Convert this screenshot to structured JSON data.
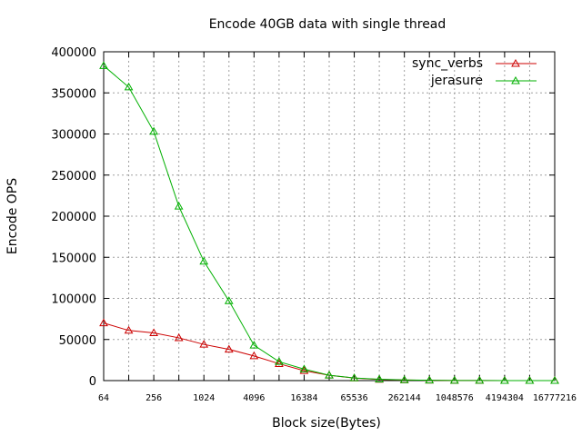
{
  "chart_data": {
    "type": "line",
    "title": "Encode 40GB data with single thread",
    "xlabel": "Block size(Bytes)",
    "ylabel": "Encode OPS",
    "x_scale": "log2",
    "x": [
      64,
      128,
      256,
      512,
      1024,
      2048,
      4096,
      8192,
      16384,
      32768,
      65536,
      131072,
      262144,
      524288,
      1048576,
      2097152,
      4194304,
      8388608,
      16777216
    ],
    "x_tick_labels": [
      "64",
      "256",
      "1024",
      "4096",
      "16384",
      "65536",
      "262144",
      "1048576",
      "4194304",
      "16777216"
    ],
    "ylim": [
      0,
      400000
    ],
    "y_ticks": [
      0,
      50000,
      100000,
      150000,
      200000,
      250000,
      300000,
      350000,
      400000
    ],
    "y_tick_labels": [
      "0",
      "50000",
      "100000",
      "150000",
      "200000",
      "250000",
      "300000",
      "350000",
      "400000"
    ],
    "grid": true,
    "legend_position": "top-right",
    "series": [
      {
        "name": "sync_verbs",
        "color": "#cc0000",
        "marker": "triangle",
        "values": [
          70000,
          61000,
          58000,
          52000,
          44000,
          38000,
          30000,
          20500,
          12000,
          6500,
          3000,
          1400,
          700,
          350,
          180,
          90,
          45,
          22,
          11
        ]
      },
      {
        "name": "jerasure",
        "color": "#00b000",
        "marker": "triangle",
        "values": [
          383000,
          357000,
          303000,
          212000,
          145000,
          97000,
          43000,
          23000,
          14000,
          6500,
          3200,
          1600,
          800,
          400,
          200,
          100,
          50,
          25,
          12
        ]
      }
    ]
  }
}
